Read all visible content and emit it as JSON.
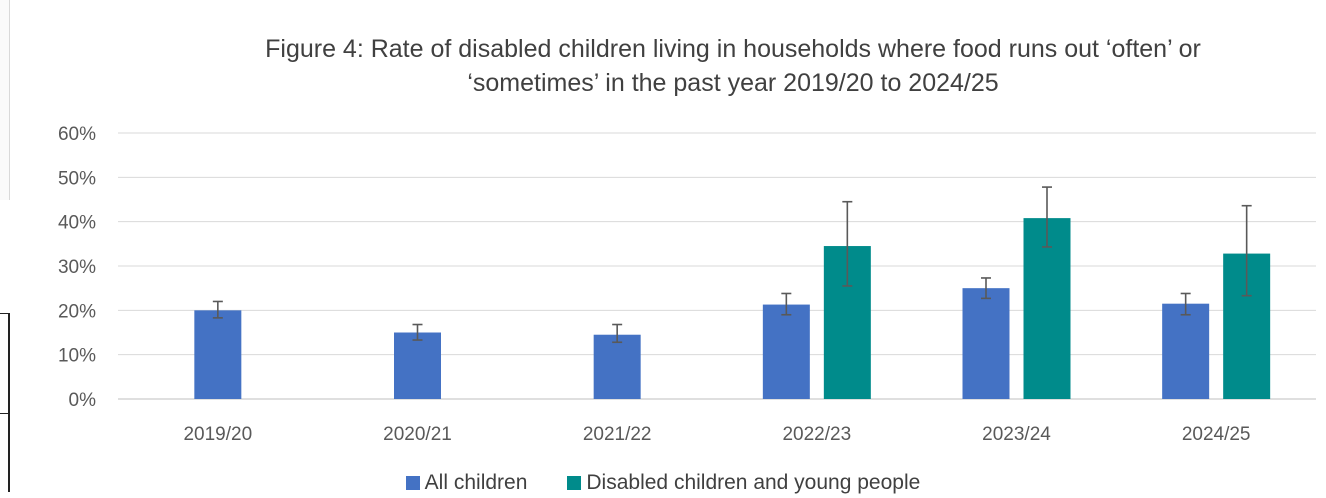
{
  "chart_data": {
    "type": "bar",
    "title": "Figure 4: Rate of disabled children living in households where food runs out ‘often’ or ‘sometimes’ in the past year 2019/20 to 2024/25",
    "title_lines": [
      "Figure 4: Rate of disabled children living in households where food runs out ‘often’ or",
      "‘sometimes’ in the past year 2019/20 to 2024/25"
    ],
    "xlabel": "",
    "ylabel": "",
    "categories": [
      "2019/20",
      "2020/21",
      "2021/22",
      "2022/23",
      "2023/24",
      "2024/25"
    ],
    "yticks": [
      "0%",
      "10%",
      "20%",
      "30%",
      "40%",
      "50%",
      "60%"
    ],
    "ylim": [
      0,
      0.6
    ],
    "grid": true,
    "legend_position": "bottom",
    "series": [
      {
        "name": "All children",
        "color": "#4472c4",
        "values": [
          0.2,
          0.15,
          0.145,
          0.213,
          0.25,
          0.215
        ],
        "error_low": [
          0.183,
          0.133,
          0.128,
          0.19,
          0.227,
          0.19
        ],
        "error_high": [
          0.22,
          0.168,
          0.168,
          0.238,
          0.273,
          0.238
        ]
      },
      {
        "name": "Disabled children and young people",
        "color": "#008b8b",
        "values": [
          null,
          null,
          null,
          0.345,
          0.408,
          0.328
        ],
        "error_low": [
          null,
          null,
          null,
          0.255,
          0.343,
          0.233
        ],
        "error_high": [
          null,
          null,
          null,
          0.445,
          0.478,
          0.436
        ]
      }
    ]
  }
}
